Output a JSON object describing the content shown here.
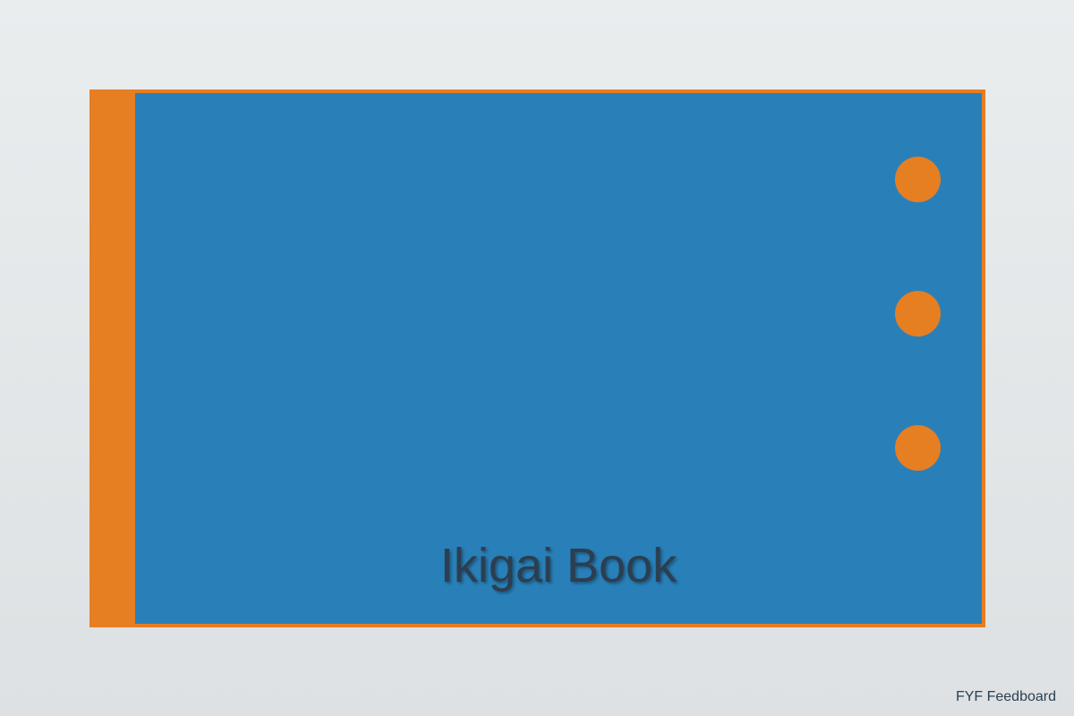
{
  "book": {
    "title": "Ikigai Book",
    "cover_color": "#2980b9",
    "spine_color": "#e67e22",
    "title_color": "#2c3e50"
  },
  "footer": {
    "label": "FYF Feedboard"
  }
}
